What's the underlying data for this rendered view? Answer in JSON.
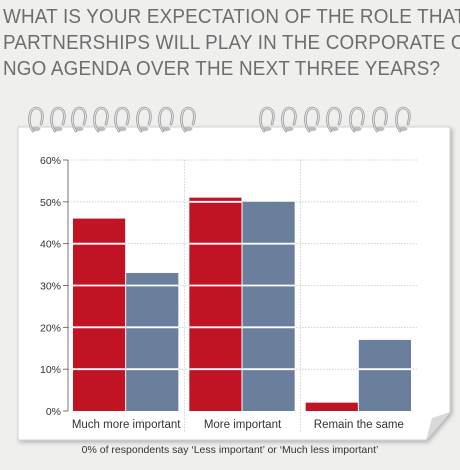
{
  "headline": {
    "line1": "WHAT IS YOUR EXPECTATION OF THE ROLE THAT",
    "line2": "PARTNERSHIPS WILL PLAY IN THE CORPORATE OR",
    "line3": "NGO AGENDA OVER THE NEXT THREE YEARS?"
  },
  "footnote": "0% of respondents say ‘Less important’ or ‘Much less important’",
  "chart_data": {
    "type": "bar",
    "categories": [
      "Much more important",
      "More important",
      "Remain the same"
    ],
    "series": [
      {
        "values": [
          46,
          51,
          2
        ],
        "color": "#c01324"
      },
      {
        "values": [
          33,
          50,
          17
        ],
        "color": "#6a7f9b"
      }
    ],
    "ylim": [
      0,
      60
    ],
    "yticks": [
      "0%",
      "10%",
      "20%",
      "30%",
      "40%",
      "50%",
      "60%"
    ],
    "grid": true
  }
}
